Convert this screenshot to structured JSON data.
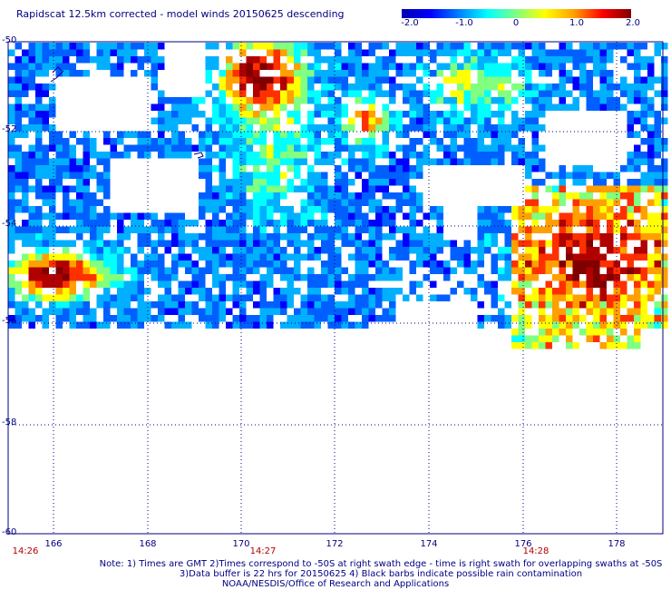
{
  "title": "Rapidscat 12.5km corrected - model winds 20150625 descending",
  "colorbar": {
    "labels": [
      "-2.0",
      "-1.0",
      "0",
      "1.0",
      "2.0"
    ],
    "stops": [
      "#0000b0",
      "#0000ff",
      "#0080ff",
      "#00ffff",
      "#80ff80",
      "#ffff00",
      "#ffa000",
      "#ff0000",
      "#800000"
    ]
  },
  "lat_labels": [
    "-50",
    "-52",
    "-54",
    "-56",
    "-58",
    "-60"
  ],
  "lon_labels": [
    "166",
    "168",
    "170",
    "172",
    "174",
    "176",
    "178"
  ],
  "time_labels": [
    "14:26",
    "14:27",
    "14:28"
  ],
  "notes": {
    "line1": "Note: 1) Times are GMT 2)Times correspond to -50S at right swath edge - time is right swath for overlapping swaths at -50S",
    "line2": "3)Data buffer is 22 hrs for 20150625 4) Black barbs indicate possible rain contamination",
    "line3": "NOAA/NESDIS/Office of Research and Applications"
  }
}
